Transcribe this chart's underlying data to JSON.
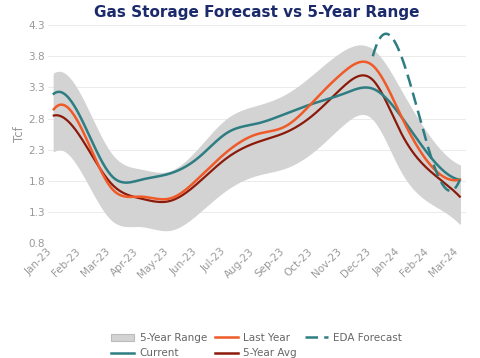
{
  "title": "Gas Storage Forecast vs 5-Year Range",
  "ylabel": "Tcf",
  "ylim": [
    0.8,
    4.3
  ],
  "yticks": [
    0.8,
    1.3,
    1.8,
    2.3,
    2.8,
    3.3,
    3.8,
    4.3
  ],
  "x_labels": [
    "Jan-23",
    "Feb-23",
    "Mar-23",
    "Apr-23",
    "May-23",
    "Jun-23",
    "Jul-23",
    "Aug-23",
    "Sep-23",
    "Oct-23",
    "Nov-23",
    "Dec-23",
    "Jan-24",
    "Feb-24",
    "Mar-24"
  ],
  "current": [
    3.2,
    2.75,
    1.88,
    1.82,
    1.92,
    2.18,
    2.58,
    2.72,
    2.88,
    3.05,
    3.2,
    3.28,
    2.82,
    2.18,
    1.82
  ],
  "last_year": [
    2.95,
    2.6,
    1.68,
    1.55,
    1.52,
    1.85,
    2.28,
    2.55,
    2.68,
    3.1,
    3.55,
    3.65,
    2.82,
    2.05,
    1.82
  ],
  "five_yr_avg": [
    2.85,
    2.45,
    1.75,
    1.52,
    1.48,
    1.78,
    2.18,
    2.42,
    2.58,
    2.88,
    3.32,
    3.42,
    2.55,
    1.95,
    1.55
  ],
  "eda_forecast": [
    null,
    null,
    null,
    null,
    null,
    null,
    null,
    null,
    null,
    null,
    null,
    3.8,
    3.78,
    2.2,
    1.82
  ],
  "range_high": [
    3.52,
    3.1,
    2.22,
    1.98,
    1.95,
    2.32,
    2.8,
    3.0,
    3.18,
    3.52,
    3.88,
    3.9,
    3.22,
    2.48,
    2.05
  ],
  "range_low": [
    2.28,
    1.92,
    1.18,
    1.08,
    1.02,
    1.3,
    1.68,
    1.9,
    2.02,
    2.3,
    2.72,
    2.8,
    1.95,
    1.45,
    1.12
  ],
  "color_current": "#2E7D82",
  "color_last_year": "#F05A28",
  "color_five_yr_avg": "#8B1A0A",
  "color_eda_forecast": "#2E7D82",
  "color_range_fill": "#D3D3D3",
  "color_range_edge": "#BBBBBB",
  "background_color": "#FFFFFF",
  "title_color": "#1A2A6B",
  "title_fontsize": 11,
  "axis_label_fontsize": 8.5,
  "tick_fontsize": 7.5,
  "legend_fontsize": 7.5
}
